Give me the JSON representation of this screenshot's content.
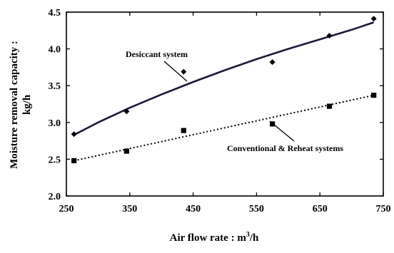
{
  "chart_data": {
    "type": "scatter",
    "title": "",
    "xlabel": "Air flow rate : m",
    "xlabel_sup": "3",
    "xlabel_tail": "/h",
    "ylabel_line1": "Moisture removal capacity :",
    "ylabel_line2": "kg/h",
    "xlim": [
      250,
      750
    ],
    "ylim": [
      2.0,
      4.5
    ],
    "x_ticks": [
      250,
      350,
      450,
      550,
      650,
      750
    ],
    "x_tick_labels": [
      "250",
      "350",
      "450",
      "550",
      "650",
      "750"
    ],
    "y_ticks": [
      2.0,
      2.5,
      3.0,
      3.5,
      4.0,
      4.5
    ],
    "y_tick_labels": [
      "2.0",
      "2.5",
      "3.0",
      "3.5",
      "4.0",
      "4.5"
    ],
    "grid": false,
    "series": [
      {
        "name": "Desiccant system",
        "marker": "diamond",
        "line": "solid",
        "color": "#1a1a3a",
        "x": [
          262,
          345,
          435,
          575,
          665,
          735
        ],
        "y": [
          2.84,
          3.15,
          3.69,
          3.82,
          4.18,
          4.41
        ],
        "fit_x": [
          262,
          300,
          350,
          400,
          450,
          500,
          550,
          600,
          650,
          700,
          735
        ],
        "fit_y": [
          2.83,
          3.0,
          3.2,
          3.38,
          3.55,
          3.71,
          3.86,
          4.0,
          4.13,
          4.26,
          4.36
        ]
      },
      {
        "name": "Conventional & Reheat systems",
        "marker": "square",
        "line": "dotted",
        "color": "#000000",
        "x": [
          262,
          345,
          435,
          575,
          665,
          735
        ],
        "y": [
          2.48,
          2.61,
          2.89,
          2.98,
          3.22,
          3.37
        ],
        "fit_x": [
          262,
          735
        ],
        "fit_y": [
          2.48,
          3.37
        ]
      }
    ],
    "annotations": [
      {
        "text": "Desiccant system",
        "series": 0
      },
      {
        "text": "Conventional & Reheat systems",
        "series": 1
      }
    ]
  }
}
